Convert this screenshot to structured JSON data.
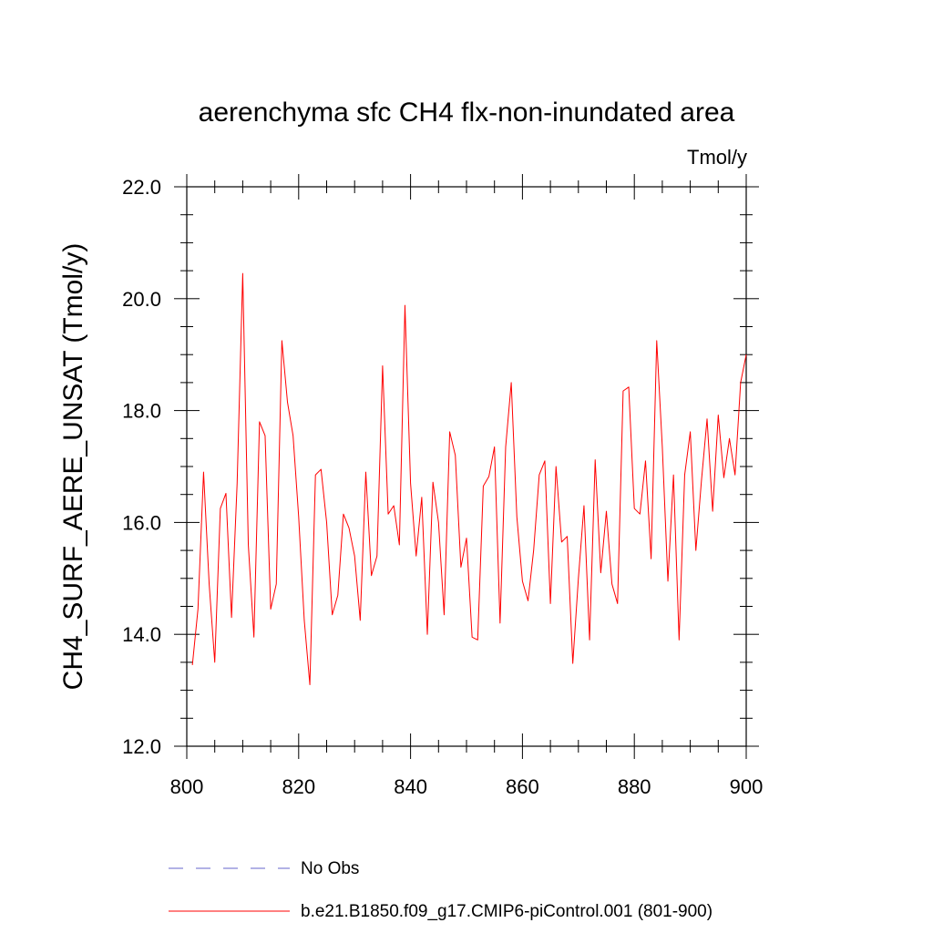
{
  "chart_data": {
    "type": "line",
    "title": "aerenchyma sfc CH4 flx-non-inundated area",
    "units": "Tmol/y",
    "xlabel": "",
    "ylabel": "CH4_SURF_AERE_UNSAT  (Tmol/y)",
    "xlim": [
      800,
      900
    ],
    "ylim": [
      12.0,
      22.0
    ],
    "xticks": [
      800,
      820,
      840,
      860,
      880,
      900
    ],
    "xtick_labels": [
      "800",
      "820",
      "840",
      "860",
      "880",
      "900"
    ],
    "yticks": [
      12.0,
      14.0,
      16.0,
      18.0,
      20.0,
      22.0
    ],
    "ytick_labels": [
      "12.0",
      "14.0",
      "16.0",
      "18.0",
      "20.0",
      "22.0"
    ],
    "series": [
      {
        "name": "b.e21.B1850.f09_g17.CMIP6-piControl.001 (801-900)",
        "color": "#ff0000",
        "style": "solid",
        "x": [
          801,
          802,
          803,
          804,
          805,
          806,
          807,
          808,
          809,
          810,
          811,
          812,
          813,
          814,
          815,
          816,
          817,
          818,
          819,
          820,
          821,
          822,
          823,
          824,
          825,
          826,
          827,
          828,
          829,
          830,
          831,
          832,
          833,
          834,
          835,
          836,
          837,
          838,
          839,
          840,
          841,
          842,
          843,
          844,
          845,
          846,
          847,
          848,
          849,
          850,
          851,
          852,
          853,
          854,
          855,
          856,
          857,
          858,
          859,
          860,
          861,
          862,
          863,
          864,
          865,
          866,
          867,
          868,
          869,
          870,
          871,
          872,
          873,
          874,
          875,
          876,
          877,
          878,
          879,
          880,
          881,
          882,
          883,
          884,
          885,
          886,
          887,
          888,
          889,
          890,
          891,
          892,
          893,
          894,
          895,
          896,
          897,
          898,
          899,
          900
        ],
        "values": [
          13.45,
          14.45,
          16.9,
          14.9,
          13.5,
          16.25,
          16.52,
          14.3,
          16.7,
          20.45,
          15.6,
          13.95,
          17.8,
          17.55,
          14.45,
          14.9,
          19.25,
          18.15,
          17.55,
          16.1,
          14.25,
          13.1,
          16.85,
          16.95,
          16.0,
          14.35,
          14.7,
          16.15,
          15.9,
          15.4,
          14.25,
          16.9,
          15.05,
          15.4,
          18.8,
          16.15,
          16.3,
          15.6,
          19.88,
          16.7,
          15.4,
          16.45,
          14.0,
          16.72,
          16.0,
          14.35,
          17.62,
          17.2,
          15.2,
          15.72,
          13.95,
          13.9,
          16.65,
          16.82,
          17.35,
          14.2,
          17.35,
          18.5,
          16.1,
          14.95,
          14.6,
          15.5,
          16.85,
          17.1,
          14.55,
          17.0,
          15.65,
          15.75,
          13.48,
          15.0,
          16.3,
          13.9,
          17.12,
          15.1,
          16.2,
          14.9,
          14.55,
          18.35,
          18.42,
          16.25,
          16.15,
          17.1,
          15.35,
          19.25,
          17.35,
          14.95,
          16.85,
          13.9,
          16.85,
          17.62,
          15.5,
          16.75,
          17.85,
          16.2,
          17.92,
          16.8,
          17.5,
          16.85,
          18.5,
          19.0
        ]
      },
      {
        "name": "No Obs",
        "color": "#6666cc",
        "style": "dashed",
        "x": [],
        "values": []
      }
    ],
    "legend_position": "bottom"
  }
}
